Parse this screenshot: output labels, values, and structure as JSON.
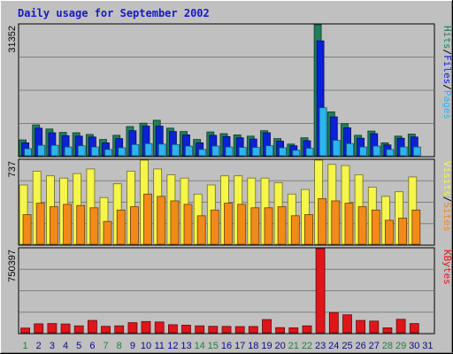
{
  "chart_title": "Daily usage for September 2002",
  "colors": {
    "background": "#c0c0c0",
    "plot_bg": "#c0c0c0",
    "grid": "#7f7f7f",
    "title": "#1717c8",
    "hits": "#1e7f5a",
    "files": "#0a22d4",
    "pages": "#2cb4f0",
    "visits": "#f5f54a",
    "sites": "#f28a1a",
    "kbytes": "#e0151a",
    "weekend_label": "#1e7f3c",
    "weekday_label": "#0a0a8c"
  },
  "chart_data": [
    {
      "type": "bar",
      "name": "hits-files-pages",
      "ymax": 31352,
      "ymax_label": "31352",
      "legend": [
        {
          "label": "Pages",
          "color_key": "pages"
        },
        {
          "label": "Files",
          "color_key": "files"
        },
        {
          "label": "Hits",
          "color_key": "hits"
        }
      ],
      "legend_separator": "/",
      "categories": [
        "1",
        "2",
        "3",
        "4",
        "5",
        "6",
        "7",
        "8",
        "9",
        "10",
        "11",
        "12",
        "13",
        "14",
        "15",
        "16",
        "17",
        "18",
        "19",
        "20",
        "21",
        "22",
        "23",
        "24",
        "25",
        "26",
        "27",
        "28",
        "29",
        "30",
        "31"
      ],
      "series": [
        {
          "name": "Hits",
          "color_key": "hits",
          "values": [
            3800,
            7400,
            6400,
            5600,
            5500,
            5100,
            3900,
            4900,
            7000,
            7800,
            8500,
            6600,
            5800,
            3900,
            5700,
            5300,
            5000,
            4700,
            6000,
            4100,
            2800,
            4300,
            31352,
            10500,
            7700,
            4900,
            5900,
            3100,
            4700,
            5200,
            0
          ]
        },
        {
          "name": "Files",
          "color_key": "files",
          "values": [
            3100,
            6600,
            5500,
            4800,
            4700,
            4500,
            3100,
            4100,
            6000,
            7100,
            7100,
            5800,
            5000,
            3100,
            4900,
            4600,
            4300,
            4000,
            5500,
            3500,
            2400,
            3600,
            27500,
            9300,
            6700,
            4200,
            5300,
            2600,
            4200,
            4500,
            0
          ]
        },
        {
          "name": "Pages",
          "color_key": "pages",
          "values": [
            1700,
            2500,
            2500,
            2100,
            2400,
            2100,
            1500,
            1900,
            2700,
            2900,
            2800,
            2700,
            2300,
            1500,
            2300,
            2100,
            2000,
            2000,
            2400,
            1900,
            1300,
            1800,
            11500,
            3700,
            2900,
            2100,
            2300,
            1500,
            2100,
            2100,
            0
          ]
        }
      ]
    },
    {
      "type": "bar",
      "name": "visits-sites",
      "ymax": 737,
      "ymax_label": "737",
      "legend": [
        {
          "label": "Sites",
          "color_key": "sites"
        },
        {
          "label": "Visits",
          "color_key": "visits"
        }
      ],
      "legend_separator": "/",
      "categories": [
        "1",
        "2",
        "3",
        "4",
        "5",
        "6",
        "7",
        "8",
        "9",
        "10",
        "11",
        "12",
        "13",
        "14",
        "15",
        "16",
        "17",
        "18",
        "19",
        "20",
        "21",
        "22",
        "23",
        "24",
        "25",
        "26",
        "27",
        "28",
        "29",
        "30",
        "31"
      ],
      "series": [
        {
          "name": "Visits",
          "color_key": "visits",
          "values": [
            520,
            640,
            600,
            580,
            620,
            660,
            410,
            530,
            640,
            737,
            660,
            610,
            580,
            440,
            520,
            600,
            600,
            580,
            580,
            540,
            440,
            480,
            737,
            700,
            690,
            610,
            500,
            420,
            460,
            590,
            0
          ]
        },
        {
          "name": "Sites",
          "color_key": "sites",
          "values": [
            260,
            360,
            330,
            350,
            340,
            320,
            200,
            300,
            330,
            440,
            420,
            380,
            350,
            250,
            300,
            360,
            350,
            320,
            320,
            330,
            250,
            260,
            400,
            380,
            360,
            330,
            300,
            210,
            230,
            300,
            0
          ]
        }
      ]
    },
    {
      "type": "bar",
      "name": "kbytes",
      "ymax": 750397,
      "ymax_label": "750397",
      "legend": [
        {
          "label": "KBytes",
          "color_key": "kbytes"
        }
      ],
      "legend_separator": "",
      "categories": [
        "1",
        "2",
        "3",
        "4",
        "5",
        "6",
        "7",
        "8",
        "9",
        "10",
        "11",
        "12",
        "13",
        "14",
        "15",
        "16",
        "17",
        "18",
        "19",
        "20",
        "21",
        "22",
        "23",
        "24",
        "25",
        "26",
        "27",
        "28",
        "29",
        "30",
        "31"
      ],
      "series": [
        {
          "name": "KBytes",
          "color_key": "kbytes",
          "values": [
            42000,
            80000,
            82000,
            78000,
            62000,
            110000,
            58000,
            62000,
            90000,
            100000,
            96000,
            72000,
            68000,
            62000,
            58000,
            57000,
            55000,
            56000,
            118000,
            46000,
            44000,
            62000,
            750397,
            180000,
            160000,
            110000,
            104000,
            44000,
            120000,
            82000,
            0
          ]
        }
      ]
    }
  ],
  "x_axis": {
    "labels": [
      "1",
      "2",
      "3",
      "4",
      "5",
      "6",
      "7",
      "8",
      "9",
      "10",
      "11",
      "12",
      "13",
      "14",
      "15",
      "16",
      "17",
      "18",
      "19",
      "20",
      "21",
      "22",
      "23",
      "24",
      "25",
      "26",
      "27",
      "28",
      "29",
      "30",
      "31"
    ],
    "weekend_days": [
      "1",
      "7",
      "8",
      "14",
      "15",
      "21",
      "22",
      "28",
      "29"
    ]
  }
}
